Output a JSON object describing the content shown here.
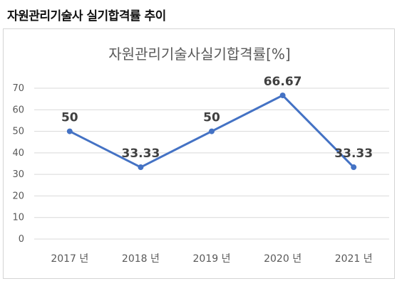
{
  "heading": "자원관리기술사 실기합격률 추이",
  "chart_data": {
    "type": "line",
    "title": "자원관리기술사실기합격률[%]",
    "categories": [
      "2017 년",
      "2018 년",
      "2019 년",
      "2020 년",
      "2021 년"
    ],
    "series": [
      {
        "values": [
          50,
          33.33,
          50,
          66.67,
          33.33
        ]
      }
    ],
    "data_labels": [
      "50",
      "33.33",
      "50",
      "66.67",
      "33.33"
    ],
    "ylim": [
      0,
      70
    ],
    "yticks": [
      "0",
      "10",
      "20",
      "30",
      "40",
      "50",
      "60",
      "70"
    ],
    "grid": true,
    "colors": {
      "line": "#4472c4",
      "grid": "#d9d9d9"
    }
  }
}
